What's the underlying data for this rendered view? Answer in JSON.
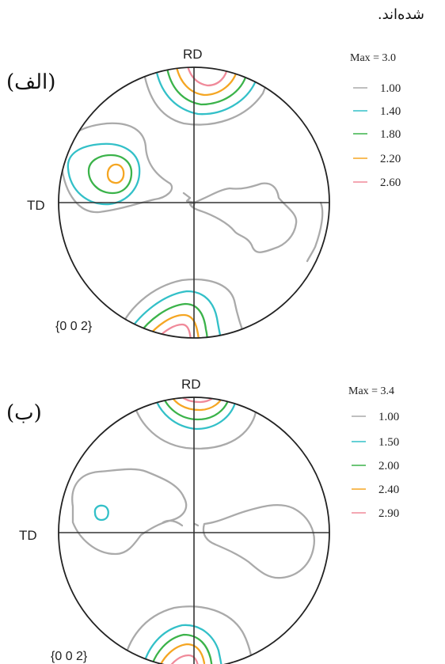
{
  "header_text": "شده‌اند.",
  "colors": {
    "level1": "#aaaaaa",
    "level2": "#33c0c8",
    "level3": "#3bb34a",
    "level4": "#f5a623",
    "level5": "#f08a9a"
  },
  "panels": [
    {
      "label": "(الف)",
      "rd_label": "RD",
      "td_label": "TD",
      "plane": "{0 0 2}",
      "max_text": "Max = 3.0",
      "levels": [
        "1.00",
        "1.40",
        "1.80",
        "2.20",
        "2.60"
      ]
    },
    {
      "label": "(ب)",
      "rd_label": "RD",
      "td_label": "TD",
      "plane": "{0 0 2}",
      "max_text": "Max = 3.4",
      "levels": [
        "1.00",
        "1.50",
        "2.00",
        "2.40",
        "2.90"
      ]
    }
  ]
}
